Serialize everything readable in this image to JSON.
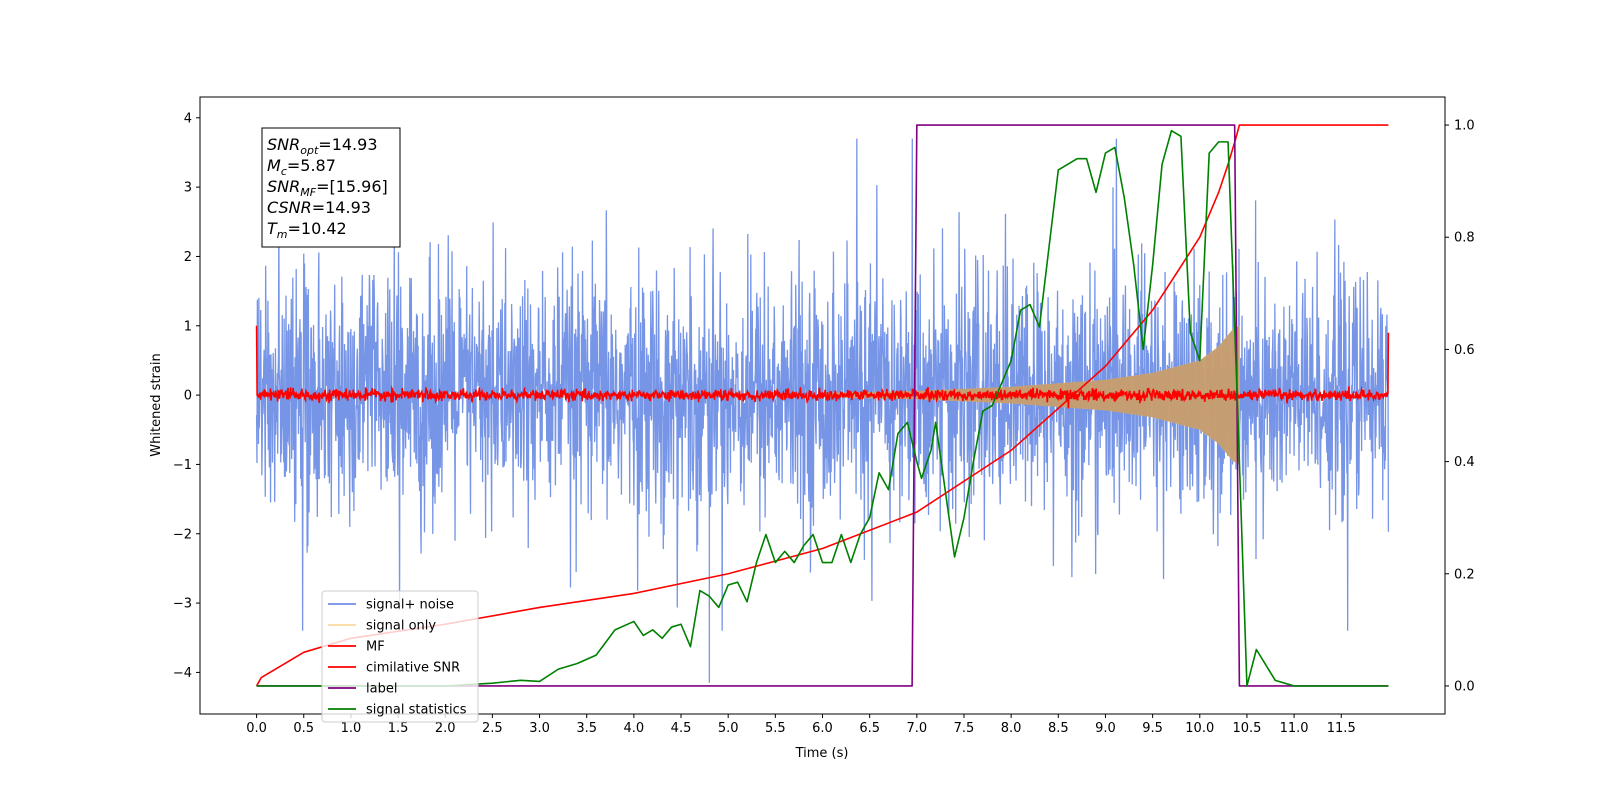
{
  "chart_data": {
    "type": "line",
    "xlabel": "Time (s)",
    "ylabel_left": "Whitened strain",
    "ylabel_right": "",
    "xlim": [
      -0.6,
      12.6
    ],
    "ylim_left": [
      -4.6,
      4.3
    ],
    "ylim_right": [
      -0.05,
      1.05
    ],
    "x_ticks": [
      "0.0",
      "0.5",
      "1.0",
      "1.5",
      "2.0",
      "2.5",
      "3.0",
      "3.5",
      "4.0",
      "4.5",
      "5.0",
      "5.5",
      "6.0",
      "6.5",
      "7.0",
      "7.5",
      "8.0",
      "8.5",
      "9.0",
      "9.5",
      "10.0",
      "10.5",
      "11.0",
      "11.5"
    ],
    "y_ticks_left": [
      "4",
      "3",
      "2",
      "1",
      "0",
      "−1",
      "−2",
      "−3",
      "−4"
    ],
    "y_ticks_right": [
      "1.0",
      "0.8",
      "0.6",
      "0.4",
      "0.2",
      "0.0"
    ],
    "grid": false,
    "legend_position": "lower-left",
    "stats_box": [
      {
        "sym": "SNR",
        "sub": "opt",
        "val": "=14.93"
      },
      {
        "sym": "M",
        "sub": "c",
        "val": "=5.87"
      },
      {
        "sym": "SNR",
        "sub": "MF",
        "val": "=[15.96]"
      },
      {
        "sym": "CSNR",
        "sub": "",
        "val": "=14.93"
      },
      {
        "sym": "T",
        "sub": "m",
        "val": "=10.42"
      }
    ],
    "series": [
      {
        "name": "signal+ noise",
        "axis": "left",
        "color": "#6f8fe6",
        "style": "dense noise band",
        "x_range": [
          0.0,
          12.0
        ],
        "noise_std": 0.85,
        "peak_max": 3.7,
        "peak_min": -4.15,
        "peak_min_x": 4.8
      },
      {
        "name": "signal only",
        "axis": "left",
        "color": "#fac978",
        "style": "chirp envelope",
        "x_range": [
          6.0,
          10.42
        ],
        "envelope": [
          [
            6.0,
            0.03
          ],
          [
            7.0,
            0.06
          ],
          [
            8.0,
            0.12
          ],
          [
            9.0,
            0.22
          ],
          [
            9.5,
            0.32
          ],
          [
            10.0,
            0.5
          ],
          [
            10.2,
            0.7
          ],
          [
            10.35,
            0.95
          ],
          [
            10.42,
            1.0
          ]
        ]
      },
      {
        "name": "MF",
        "axis": "left",
        "color": "#ff0000",
        "style": "noisy line near zero",
        "x_range": [
          0.0,
          12.0
        ],
        "noise_std": 0.04,
        "start_value": 1.0,
        "end_value": 0.9
      },
      {
        "name": "cimilative SNR",
        "axis": "right",
        "color": "#ff0000",
        "x": [
          0.0,
          0.05,
          0.5,
          1.0,
          2.0,
          3.0,
          4.0,
          5.0,
          6.0,
          7.0,
          8.0,
          9.0,
          9.5,
          10.0,
          10.2,
          10.3,
          10.38,
          10.42,
          12.0
        ],
        "y": [
          0.0,
          0.015,
          0.06,
          0.085,
          0.11,
          0.14,
          0.165,
          0.2,
          0.245,
          0.31,
          0.42,
          0.57,
          0.67,
          0.8,
          0.88,
          0.93,
          0.975,
          1.0,
          1.0
        ]
      },
      {
        "name": "label",
        "axis": "right",
        "color": "#800080",
        "x": [
          0.0,
          6.95,
          7.0,
          10.37,
          10.42,
          12.0
        ],
        "y": [
          0.0,
          0.0,
          1.0,
          1.0,
          0.0,
          0.0
        ]
      },
      {
        "name": "signal statistics",
        "axis": "right",
        "color": "#008000",
        "x": [
          0.0,
          0.5,
          1.0,
          1.5,
          2.0,
          2.5,
          2.8,
          3.0,
          3.2,
          3.4,
          3.6,
          3.8,
          4.0,
          4.1,
          4.2,
          4.3,
          4.4,
          4.5,
          4.6,
          4.7,
          4.8,
          4.9,
          5.0,
          5.1,
          5.2,
          5.3,
          5.4,
          5.5,
          5.6,
          5.7,
          5.8,
          5.9,
          6.0,
          6.1,
          6.2,
          6.3,
          6.4,
          6.5,
          6.6,
          6.7,
          6.8,
          6.9,
          7.0,
          7.05,
          7.15,
          7.2,
          7.3,
          7.4,
          7.5,
          7.6,
          7.7,
          7.8,
          7.9,
          8.0,
          8.1,
          8.2,
          8.3,
          8.4,
          8.5,
          8.6,
          8.7,
          8.8,
          8.9,
          9.0,
          9.1,
          9.2,
          9.3,
          9.4,
          9.5,
          9.6,
          9.7,
          9.8,
          9.9,
          10.0,
          10.1,
          10.2,
          10.3,
          10.4,
          10.5,
          10.6,
          10.8,
          11.0,
          11.5,
          12.0
        ],
        "y": [
          0.0,
          0.0,
          0.0,
          0.0,
          0.0,
          0.005,
          0.01,
          0.008,
          0.03,
          0.04,
          0.055,
          0.1,
          0.115,
          0.09,
          0.1,
          0.085,
          0.105,
          0.11,
          0.07,
          0.17,
          0.16,
          0.14,
          0.18,
          0.185,
          0.15,
          0.22,
          0.27,
          0.22,
          0.24,
          0.22,
          0.25,
          0.27,
          0.22,
          0.22,
          0.27,
          0.22,
          0.27,
          0.3,
          0.38,
          0.35,
          0.45,
          0.47,
          0.4,
          0.37,
          0.42,
          0.47,
          0.35,
          0.23,
          0.3,
          0.4,
          0.49,
          0.5,
          0.54,
          0.58,
          0.67,
          0.68,
          0.64,
          0.78,
          0.92,
          0.93,
          0.94,
          0.94,
          0.88,
          0.95,
          0.96,
          0.87,
          0.75,
          0.6,
          0.75,
          0.93,
          0.99,
          0.98,
          0.63,
          0.58,
          0.95,
          0.97,
          0.97,
          0.5,
          0.0,
          0.065,
          0.01,
          0.0,
          0.0,
          0.0
        ]
      }
    ]
  }
}
